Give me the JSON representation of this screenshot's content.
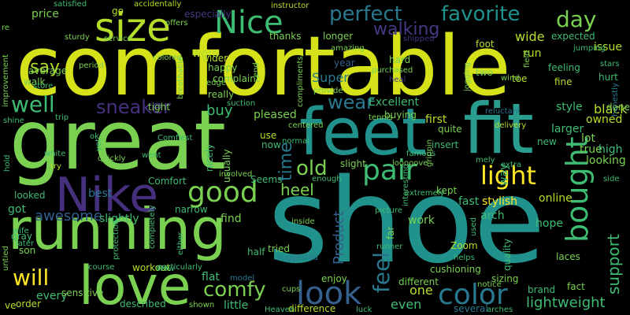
{
  "palette": {
    "yellow": "#d5e21a",
    "lime": "#7ad151",
    "green": "#3fbc73",
    "teal": "#21918c",
    "bluegreen": "#2a788e",
    "blue": "#355f8d",
    "indigo": "#443983",
    "purple": "#46307e",
    "darkpurple": "#440154"
  },
  "words": [
    {
      "text": "comfortable",
      "color": "#d5e21a"
    },
    {
      "text": "great",
      "color": "#7ad151"
    },
    {
      "text": "shoe",
      "color": "#21918c"
    },
    {
      "text": "running",
      "color": "#7ad151"
    },
    {
      "text": "fit",
      "color": "#2a9d8f"
    },
    {
      "text": "feet",
      "color": "#21918c"
    },
    {
      "text": "Nike",
      "color": "#46307e"
    },
    {
      "text": "love",
      "color": "#7ad151"
    },
    {
      "text": "size",
      "color": "#b5de2b"
    },
    {
      "text": "Nice",
      "color": "#3fbc73"
    },
    {
      "text": "pair",
      "color": "#3fbc73"
    },
    {
      "text": "good",
      "color": "#7ad151"
    },
    {
      "text": "look",
      "color": "#355f8d"
    },
    {
      "text": "bought",
      "color": "#3fbc73"
    },
    {
      "text": "light",
      "color": "#fde725"
    },
    {
      "text": "comfy",
      "color": "#7ad151"
    },
    {
      "text": "color",
      "color": "#2a788e"
    },
    {
      "text": "perfect",
      "color": "#2a788e"
    },
    {
      "text": "favorite",
      "color": "#21918c"
    },
    {
      "text": "day",
      "color": "#7ad151"
    },
    {
      "text": "walking",
      "color": "#443983"
    },
    {
      "text": "wear",
      "color": "#2a788e"
    },
    {
      "text": "sneaker",
      "color": "#46307e"
    },
    {
      "text": "well",
      "color": "#3fbc73"
    },
    {
      "text": "say",
      "color": "#b5de2b"
    },
    {
      "text": "old",
      "color": "#7ad151"
    },
    {
      "text": "heel",
      "color": "#7ad151"
    },
    {
      "text": "time",
      "color": "#2a788e"
    },
    {
      "text": "feel",
      "color": "#2a788e"
    },
    {
      "text": "will",
      "color": "#fde725"
    },
    {
      "text": "support",
      "color": "#3fbc73"
    },
    {
      "text": "lightweight",
      "color": "#3fbc73"
    },
    {
      "text": "awesome",
      "color": "#355f8d"
    },
    {
      "text": "Product",
      "color": "#355f8d"
    },
    {
      "text": "price",
      "color": "#7ad151"
    },
    {
      "text": "average",
      "color": "#7ad151"
    },
    {
      "text": "walk",
      "color": "#7ad151"
    },
    {
      "text": "store",
      "color": "#3fbc73"
    },
    {
      "text": "go",
      "color": "#b5de2b"
    },
    {
      "text": "worn",
      "color": "#b5de2b"
    },
    {
      "text": "Super",
      "color": "#2a788e"
    },
    {
      "text": "year",
      "color": "#355f8d"
    },
    {
      "text": "run",
      "color": "#b5de2b"
    },
    {
      "text": "wide",
      "color": "#b5de2b"
    },
    {
      "text": "expected",
      "color": "#3fbc73"
    },
    {
      "text": "issue",
      "color": "#b5de2b"
    },
    {
      "text": "style",
      "color": "#3fbc73"
    },
    {
      "text": "black",
      "color": "#b5de2b"
    },
    {
      "text": "done",
      "color": "#7ad151"
    },
    {
      "text": "owned",
      "color": "#b5de2b"
    },
    {
      "text": "lot",
      "color": "#7ad151"
    },
    {
      "text": "true",
      "color": "#7ad151"
    },
    {
      "text": "high",
      "color": "#3fbc73"
    },
    {
      "text": "looking",
      "color": "#7ad151"
    },
    {
      "text": "larger",
      "color": "#3fbc73"
    },
    {
      "text": "buy",
      "color": "#3fbc73"
    },
    {
      "text": "tight",
      "color": "#7ad151"
    },
    {
      "text": "Excellent",
      "color": "#3fbc73"
    },
    {
      "text": "pleased",
      "color": "#7ad151"
    },
    {
      "text": "thanks",
      "color": "#7ad151"
    },
    {
      "text": "longer",
      "color": "#7ad151"
    },
    {
      "text": "happy",
      "color": "#7ad151"
    },
    {
      "text": "really",
      "color": "#7ad151"
    },
    {
      "text": "use",
      "color": "#b5de2b"
    },
    {
      "text": "now",
      "color": "#3fbc73"
    },
    {
      "text": "first",
      "color": "#b5de2b"
    },
    {
      "text": "quite",
      "color": "#7ad151"
    },
    {
      "text": "insert",
      "color": "#3fbc73"
    },
    {
      "text": "slight",
      "color": "#7ad151"
    },
    {
      "text": "kept",
      "color": "#7ad151"
    },
    {
      "text": "fast",
      "color": "#3fbc73"
    },
    {
      "text": "arch",
      "color": "#3fbc73"
    },
    {
      "text": "work",
      "color": "#7ad151"
    },
    {
      "text": "online",
      "color": "#b5de2b"
    },
    {
      "text": "stylish",
      "color": "#fde725"
    },
    {
      "text": "best",
      "color": "#2a788e"
    },
    {
      "text": "slightly",
      "color": "#3fbc73"
    },
    {
      "text": "find",
      "color": "#7ad151"
    },
    {
      "text": "got",
      "color": "#3fbc73"
    },
    {
      "text": "tried",
      "color": "#7ad151"
    },
    {
      "text": "every",
      "color": "#3fbc73"
    },
    {
      "text": "flat",
      "color": "#3fbc73"
    },
    {
      "text": "little",
      "color": "#3fbc73"
    },
    {
      "text": "one",
      "color": "#b5de2b"
    },
    {
      "text": "even",
      "color": "#3fbc73"
    },
    {
      "text": "far",
      "color": "#7ad151"
    },
    {
      "text": "hope",
      "color": "#3fbc73"
    },
    {
      "text": "laces",
      "color": "#7ad151"
    },
    {
      "text": "brand",
      "color": "#3fbc73"
    },
    {
      "text": "fact",
      "color": "#7ad151"
    },
    {
      "text": "sizing",
      "color": "#7ad151"
    },
    {
      "text": "several",
      "color": "#2a788e"
    },
    {
      "text": "different",
      "color": "#7ad151"
    },
    {
      "text": "Zoom",
      "color": "#b5de2b"
    },
    {
      "text": "quality",
      "color": "#3fbc73"
    },
    {
      "text": "cushioning",
      "color": "#7ad151"
    },
    {
      "text": "enjoy",
      "color": "#7ad151"
    },
    {
      "text": "workout",
      "color": "#b5de2b"
    },
    {
      "text": "sensitive",
      "color": "#7ad151"
    },
    {
      "text": "order",
      "color": "#b5de2b"
    },
    {
      "text": "described",
      "color": "#3fbc73"
    },
    {
      "text": "shown",
      "color": "#7ad151"
    },
    {
      "text": "difference",
      "color": "#b5de2b"
    },
    {
      "text": "Comfort",
      "color": "#3fbc73"
    },
    {
      "text": "gray",
      "color": "#3fbc73"
    },
    {
      "text": "looked",
      "color": "#3fbc73"
    },
    {
      "text": "son",
      "color": "#7ad151"
    },
    {
      "text": "half",
      "color": "#3fbc73"
    },
    {
      "text": "Seems",
      "color": "#3fbc73"
    },
    {
      "text": "narrow",
      "color": "#3fbc73"
    },
    {
      "text": "nicely",
      "color": "#3fbc73"
    },
    {
      "text": "usually",
      "color": "#7ad151"
    },
    {
      "text": "complaint",
      "color": "#7ad151"
    },
    {
      "text": "service",
      "color": "#7ad151"
    },
    {
      "text": "sturdy",
      "color": "#7ad151"
    },
    {
      "text": "amazing",
      "color": "#7ad151"
    },
    {
      "text": "offers",
      "color": "#7ad151"
    },
    {
      "text": "especially",
      "color": "#443983"
    },
    {
      "text": "accidentally",
      "color": "#b5de2b"
    },
    {
      "text": "satisfied",
      "color": "#3fbc73"
    },
    {
      "text": "instructor",
      "color": "#b5de2b"
    },
    {
      "text": "foot",
      "color": "#b5de2b"
    },
    {
      "text": "shipped",
      "color": "#46307e"
    },
    {
      "text": "jogging",
      "color": "#7ad151"
    },
    {
      "text": "two",
      "color": "#7ad151"
    },
    {
      "text": "toe",
      "color": "#b5de2b"
    },
    {
      "text": "fine",
      "color": "#b5de2b"
    },
    {
      "text": "hurt",
      "color": "#3fbc73"
    },
    {
      "text": "stars",
      "color": "#3fbc73"
    },
    {
      "text": "jumping",
      "color": "#3fbc73"
    },
    {
      "text": "feeling",
      "color": "#3fbc73"
    },
    {
      "text": "hard",
      "color": "#7ad151"
    },
    {
      "text": "purchased",
      "color": "#7ad151"
    },
    {
      "text": "tennis",
      "color": "#7ad151"
    },
    {
      "text": "buying",
      "color": "#7ad151"
    },
    {
      "text": "new",
      "color": "#3fbc73"
    },
    {
      "text": "delivery",
      "color": "#b5de2b"
    },
    {
      "text": "reluctant",
      "color": "#2a788e"
    },
    {
      "text": "honestly",
      "color": "#2a788e"
    },
    {
      "text": "wider",
      "color": "#b5de2b"
    },
    {
      "text": "end",
      "color": "#7ad151"
    },
    {
      "text": "compliments",
      "color": "#7ad151"
    },
    {
      "text": "provide",
      "color": "#7ad151"
    },
    {
      "text": "breathable",
      "color": "#7ad151"
    },
    {
      "text": "edge",
      "color": "#7ad151"
    },
    {
      "text": "period",
      "color": "#7ad151"
    },
    {
      "text": "colored",
      "color": "#7ad151"
    },
    {
      "text": "suction",
      "color": "#3fbc73"
    },
    {
      "text": "centered",
      "color": "#7ad151"
    },
    {
      "text": "normal",
      "color": "#3fbc73"
    },
    {
      "text": "famous",
      "color": "#3fbc73"
    },
    {
      "text": "looooove",
      "color": "#7ad151"
    },
    {
      "text": "grippin",
      "color": "#7ad151"
    },
    {
      "text": "enough",
      "color": "#3fbc73"
    },
    {
      "text": "extremely",
      "color": "#3fbc73"
    },
    {
      "text": "interesting",
      "color": "#3fbc73"
    },
    {
      "text": "picture",
      "color": "#3fbc73"
    },
    {
      "text": "inside",
      "color": "#7ad151"
    },
    {
      "text": "suggested",
      "color": "#2a788e"
    },
    {
      "text": "runner",
      "color": "#3fbc73"
    },
    {
      "text": "used",
      "color": "#3fbc73"
    },
    {
      "text": "helps",
      "color": "#3fbc73"
    },
    {
      "text": "model",
      "color": "#2a788e"
    },
    {
      "text": "notice",
      "color": "#7ad151"
    },
    {
      "text": "luck",
      "color": "#3fbc73"
    },
    {
      "text": "Heaven",
      "color": "#3fbc73"
    },
    {
      "text": "cups",
      "color": "#7ad151"
    },
    {
      "text": "arches",
      "color": "#3fbc73"
    },
    {
      "text": "particularly",
      "color": "#3fbc73"
    },
    {
      "text": "either",
      "color": "#3fbc73"
    },
    {
      "text": "completely",
      "color": "#3fbc73"
    },
    {
      "text": "protection",
      "color": "#3fbc73"
    },
    {
      "text": "course",
      "color": "#3fbc73"
    },
    {
      "text": "involved",
      "color": "#7ad151"
    },
    {
      "text": "went",
      "color": "#3fbc73"
    },
    {
      "text": "Comfiest",
      "color": "#3fbc73"
    },
    {
      "text": "quickly",
      "color": "#7ad151"
    },
    {
      "text": "trip",
      "color": "#3fbc73"
    },
    {
      "text": "shine",
      "color": "#3fbc73"
    },
    {
      "text": "white",
      "color": "#3fbc73"
    },
    {
      "text": "hold",
      "color": "#3fbc73"
    },
    {
      "text": "wife",
      "color": "#3fbc73"
    },
    {
      "text": "later",
      "color": "#3fbc73"
    },
    {
      "text": "untied",
      "color": "#7ad151"
    },
    {
      "text": "improvement",
      "color": "#7ad151"
    },
    {
      "text": "re",
      "color": "#7ad151"
    },
    {
      "text": "try",
      "color": "#b5de2b"
    },
    {
      "text": "yet",
      "color": "#3fbc73"
    },
    {
      "text": "ok",
      "color": "#3fbc73"
    },
    {
      "text": "Wow",
      "color": "#3fbc73"
    },
    {
      "text": "side",
      "color": "#3fbc73"
    },
    {
      "text": "field",
      "color": "#7ad151"
    },
    {
      "text": "wind",
      "color": "#7ad151"
    },
    {
      "text": "heal",
      "color": "#443983"
    },
    {
      "text": "extra",
      "color": "#3fbc73"
    },
    {
      "text": "ve",
      "color": "#b5de2b"
    },
    {
      "text": "way",
      "color": "#3fbc73"
    },
    {
      "text": "mely",
      "color": "#3fbc73"
    }
  ]
}
